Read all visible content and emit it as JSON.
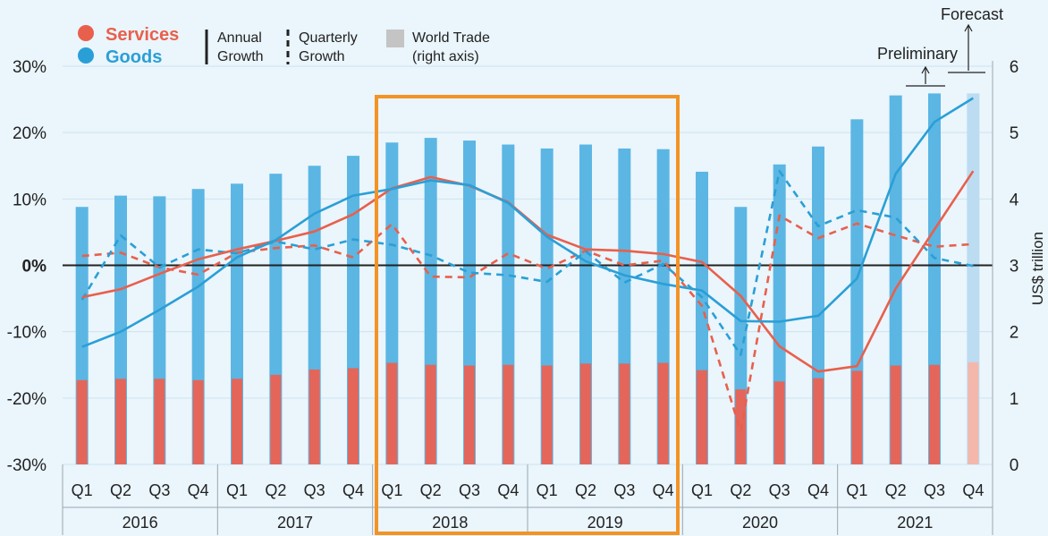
{
  "legend": {
    "services": "Services",
    "goods": "Goods",
    "annual_line1": "Annual",
    "annual_line2": "Growth",
    "quarterly_line1": "Quarterly",
    "quarterly_line2": "Growth",
    "trade_line1": "World Trade",
    "trade_line2": "(right axis)"
  },
  "annotations": {
    "forecast": "Forecast",
    "preliminary": "Preliminary"
  },
  "colors": {
    "services": "#e8604c",
    "goods": "#2a9fd6",
    "goods_bar": "#5bb6e3",
    "services_bar": "#e4665a",
    "forecast_goods_bar": "#bcdcf2",
    "forecast_services_bar": "#f3b7ab",
    "highlight": "#f39325",
    "zero_line": "#222222"
  },
  "chart_data": {
    "type": "bar",
    "quarters": [
      "Q1",
      "Q2",
      "Q3",
      "Q4",
      "Q1",
      "Q2",
      "Q3",
      "Q4",
      "Q1",
      "Q2",
      "Q3",
      "Q4",
      "Q1",
      "Q2",
      "Q3",
      "Q4",
      "Q1",
      "Q2",
      "Q3",
      "Q4",
      "Q1",
      "Q2",
      "Q3",
      "Q4"
    ],
    "years": [
      "2016",
      "2017",
      "2018",
      "2019",
      "2020",
      "2021"
    ],
    "y_left": {
      "min": -30,
      "max": 30,
      "ticks": [
        "30%",
        "20%",
        "10%",
        "0%",
        "-10%",
        "-20%",
        "-30%"
      ]
    },
    "y_right": {
      "label": "US$ trillion",
      "min": 0,
      "max": 6,
      "ticks": [
        "6",
        "5",
        "4",
        "3",
        "2",
        "1",
        "0"
      ]
    },
    "series": [
      {
        "name": "Goods",
        "kind": "bar_right_axis",
        "values": [
          3.88,
          4.05,
          4.04,
          4.15,
          4.23,
          4.38,
          4.5,
          4.65,
          4.85,
          4.92,
          4.88,
          4.82,
          4.76,
          4.82,
          4.76,
          4.75,
          4.41,
          3.88,
          4.52,
          4.79,
          5.2,
          5.56,
          5.59,
          5.59
        ]
      },
      {
        "name": "Services",
        "kind": "bar_right_axis",
        "values": [
          1.27,
          1.29,
          1.29,
          1.27,
          1.29,
          1.35,
          1.43,
          1.45,
          1.53,
          1.5,
          1.49,
          1.5,
          1.49,
          1.52,
          1.52,
          1.53,
          1.42,
          1.13,
          1.25,
          1.3,
          1.41,
          1.49,
          1.5,
          1.54
        ]
      },
      {
        "name": "Services",
        "kind": "annual_growth",
        "values": [
          -4.8,
          -3.6,
          -1.3,
          0.9,
          2.4,
          3.7,
          5.1,
          7.7,
          11.6,
          13.3,
          12.0,
          9.5,
          4.6,
          2.4,
          2.2,
          1.7,
          0.5,
          -4.6,
          -12.2,
          -16.0,
          -15.2,
          -3.5,
          5.4,
          14.2
        ]
      },
      {
        "name": "Goods",
        "kind": "annual_growth",
        "values": [
          -12.3,
          -10.0,
          -6.7,
          -3.2,
          1.2,
          3.8,
          7.8,
          10.5,
          11.5,
          12.8,
          12.1,
          9.4,
          4.3,
          0.6,
          -1.5,
          -2.8,
          -3.8,
          -8.4,
          -8.5,
          -7.6,
          -2.0,
          13.8,
          21.6,
          25.2
        ]
      },
      {
        "name": "Services",
        "kind": "quarterly_growth",
        "values": [
          1.4,
          1.9,
          -0.3,
          -1.4,
          1.9,
          2.6,
          3.0,
          1.2,
          6.2,
          -1.7,
          -1.8,
          1.8,
          -0.5,
          2.2,
          0.0,
          0.7,
          -6.1,
          -25.0,
          7.5,
          4.1,
          6.3,
          4.5,
          2.8,
          3.2
        ]
      },
      {
        "name": "Goods",
        "kind": "quarterly_growth",
        "values": [
          -5.2,
          4.5,
          -0.3,
          2.4,
          1.8,
          3.6,
          2.4,
          3.9,
          3.1,
          1.5,
          -1.1,
          -1.5,
          -2.5,
          2.1,
          -2.6,
          0.2,
          -4.8,
          -13.5,
          14.2,
          5.9,
          8.3,
          7.2,
          1.1,
          -0.1
        ]
      }
    ],
    "forecast_quarter": "Q4 2021",
    "preliminary_quarter": "Q3 2021",
    "highlight_range": [
      "Q1 2018",
      "Q4 2019"
    ]
  }
}
